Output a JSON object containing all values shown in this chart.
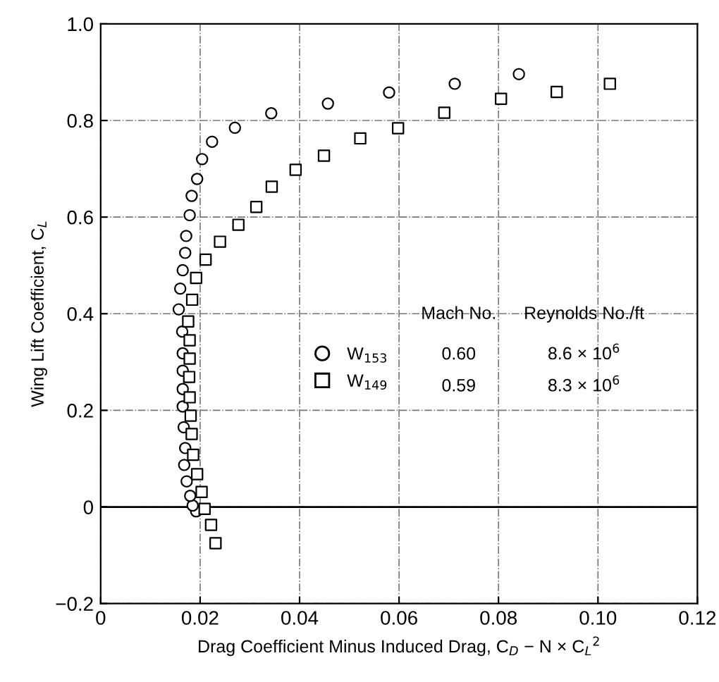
{
  "chart_data": {
    "type": "scatter",
    "xlabel": "Drag Coefficient Minus Induced Drag, C$_{D}$ − N × C$_{L}$$^{2}$",
    "ylabel": "Wing Lift Coefficient, C$_{L}$",
    "xlim": [
      0,
      0.12
    ],
    "ylim": [
      -0.2,
      1.0
    ],
    "xticks": [
      0,
      0.02,
      0.04,
      0.06,
      0.08,
      {
        "value": 0.1,
        "label": "0.10"
      },
      0.12
    ],
    "yticks": [
      {
        "value": -0.2,
        "label": "−0.2"
      },
      0,
      0.2,
      0.4,
      0.6,
      0.8,
      {
        "value": 1.0,
        "label": "1.0"
      }
    ],
    "grid": true,
    "legend": "center",
    "ref_lines": [
      {
        "axis": "y",
        "value": 0,
        "color": "#000000",
        "line_style": "solid"
      }
    ],
    "annotations": [
      "Mach No.",
      "Reynolds No./ft",
      "0.60",
      "8.6 × 10$^{6}$",
      "0.59",
      "8.3 × 10$^{6}$"
    ],
    "series": [
      {
        "name": "W$_{153}$",
        "color": "#000000",
        "marker": "circle",
        "x": [
          0.0192,
          0.0185,
          0.018,
          0.0173,
          0.0168,
          0.017,
          0.0167,
          0.0165,
          0.0165,
          0.0165,
          0.0165,
          0.0164,
          0.0157,
          0.016,
          0.0165,
          0.017,
          0.0172,
          0.0179,
          0.0183,
          0.0194,
          0.0204,
          0.0224,
          0.027,
          0.0343,
          0.0457,
          0.058,
          0.0712,
          0.0841
        ],
        "values": [
          -0.009,
          0.003,
          0.023,
          0.053,
          0.087,
          0.122,
          0.165,
          0.208,
          0.244,
          0.282,
          0.318,
          0.363,
          0.409,
          0.452,
          0.49,
          0.526,
          0.561,
          0.604,
          0.644,
          0.679,
          0.72,
          0.756,
          0.785,
          0.815,
          0.835,
          0.858,
          0.876,
          0.896
        ]
      },
      {
        "name": "W$_{149}$",
        "color": "#000000",
        "marker": "square",
        "x": [
          0.0231,
          0.0222,
          0.0209,
          0.0203,
          0.0194,
          0.0186,
          0.0183,
          0.0181,
          0.0179,
          0.0178,
          0.0179,
          0.0179,
          0.0176,
          0.0184,
          0.0192,
          0.0211,
          0.024,
          0.0277,
          0.0313,
          0.0344,
          0.0392,
          0.0449,
          0.0522,
          0.0598,
          0.0691,
          0.0805,
          0.0917,
          0.1024
        ],
        "values": [
          -0.075,
          -0.037,
          -0.004,
          0.031,
          0.068,
          0.108,
          0.151,
          0.189,
          0.227,
          0.269,
          0.307,
          0.345,
          0.384,
          0.429,
          0.474,
          0.512,
          0.549,
          0.584,
          0.621,
          0.663,
          0.698,
          0.727,
          0.763,
          0.784,
          0.816,
          0.845,
          0.859,
          0.876
        ]
      }
    ]
  }
}
